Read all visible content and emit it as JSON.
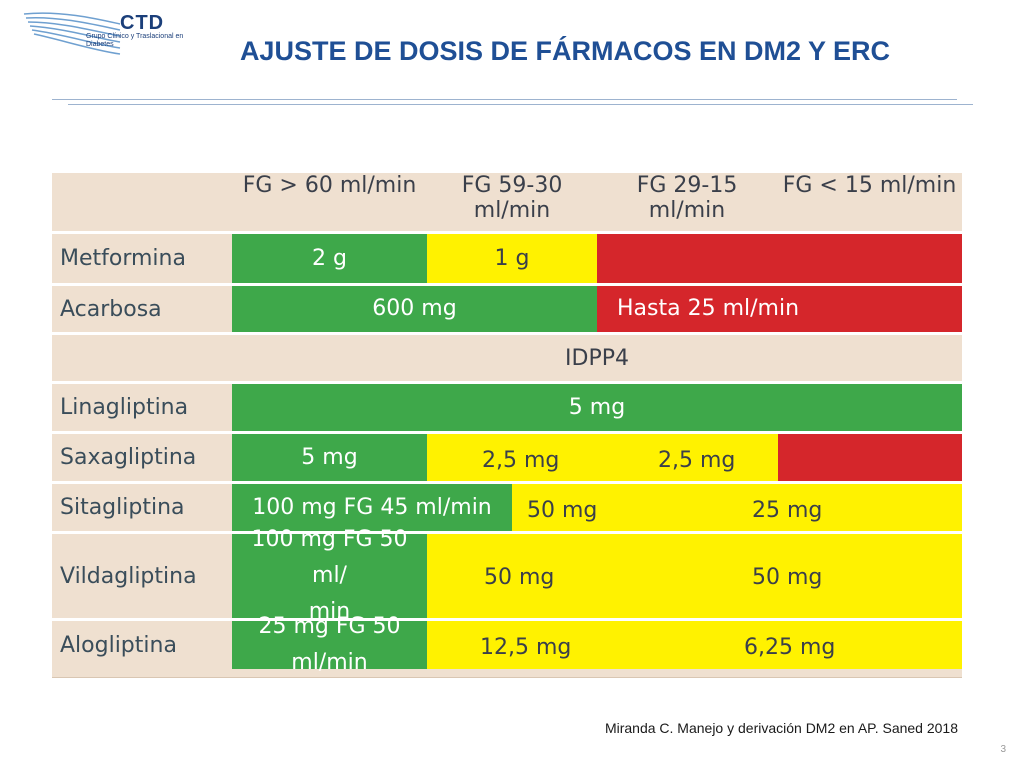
{
  "logo": {
    "name": "CTD",
    "subtitle": "Grupo Clínico y Traslacional en Diabetes"
  },
  "title": "AJUSTE DE DOSIS DE FÁRMACOS EN DM2 Y ERC",
  "table": {
    "headers": [
      "FG > 60 ml/min",
      "FG 59-30 ml/min",
      "FG 29-15 ml/min",
      "FG < 15 ml/min"
    ],
    "section_label": "IDPP4",
    "rows": {
      "metformina": {
        "drug": "Metformina",
        "c1": "2 g",
        "c2": "1 g"
      },
      "acarbosa": {
        "drug": "Acarbosa",
        "c1": "600 mg",
        "c2": "Hasta 25 ml/min"
      },
      "linagliptina": {
        "drug": "Linagliptina",
        "c1": "5 mg"
      },
      "saxagliptina": {
        "drug": "Saxagliptina",
        "c1": "5 mg",
        "c2": "2,5 mg",
        "c3": "2,5 mg"
      },
      "sitagliptina": {
        "drug": "Sitagliptina",
        "c1": "100 mg FG 45 ml/min",
        "c2": "50 mg",
        "c3": "25 mg"
      },
      "vildagliptina": {
        "drug": "Vildagliptina",
        "c1a": "100 mg FG 50 ml/",
        "c1b": "min",
        "c2": "50 mg",
        "c3": "50 mg"
      },
      "alogliptina": {
        "drug": "Alogliptina",
        "c1": "25 mg FG 50 ml/min",
        "c2": "12,5 mg",
        "c3": "6,25 mg"
      }
    }
  },
  "citation": "Miranda C. Manejo y derivación DM2 en AP. Saned 2018",
  "page_number": "3",
  "colors": {
    "green": "#3ea84a",
    "yellow": "#fff200",
    "red": "#d5262b",
    "header_bg": "#efe0d0",
    "title": "#1f4f95"
  }
}
